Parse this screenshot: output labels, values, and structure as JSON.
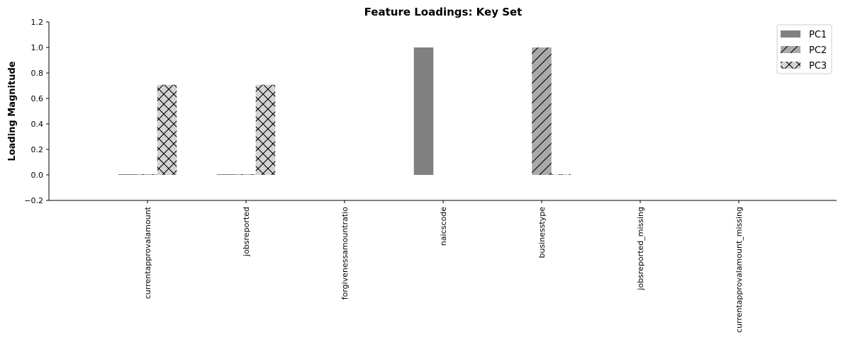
{
  "chart_data": {
    "type": "bar",
    "title": "Feature Loadings: Key Set",
    "xlabel": "",
    "ylabel": "Loading Magnitude",
    "ylim": [
      -0.2,
      1.2
    ],
    "yticks": [
      "−0.2",
      "0.0",
      "0.2",
      "0.4",
      "0.6",
      "0.8",
      "1.0",
      "1.2"
    ],
    "categories": [
      "currentapprovalamount",
      "jobsreported",
      "forgivenessamountratio",
      "naicscode",
      "businesstype",
      "jobsreported_missing",
      "currentapprovalamount_missing"
    ],
    "series": [
      {
        "name": "PC1",
        "values": [
          0.002,
          0.002,
          0.0,
          1.0,
          0.0,
          0.0,
          0.0
        ],
        "color": "#808080",
        "hatch": "none"
      },
      {
        "name": "PC2",
        "values": [
          0.002,
          0.002,
          0.0,
          0.0,
          1.0,
          0.0,
          0.0
        ],
        "color": "#a9a9a9",
        "hatch": "diagonal"
      },
      {
        "name": "PC3",
        "values": [
          0.707,
          0.707,
          0.0,
          0.0,
          0.002,
          0.0,
          0.0
        ],
        "color": "#d3d3d3",
        "hatch": "cross"
      }
    ],
    "grid": false,
    "legend_position": "top-right"
  }
}
